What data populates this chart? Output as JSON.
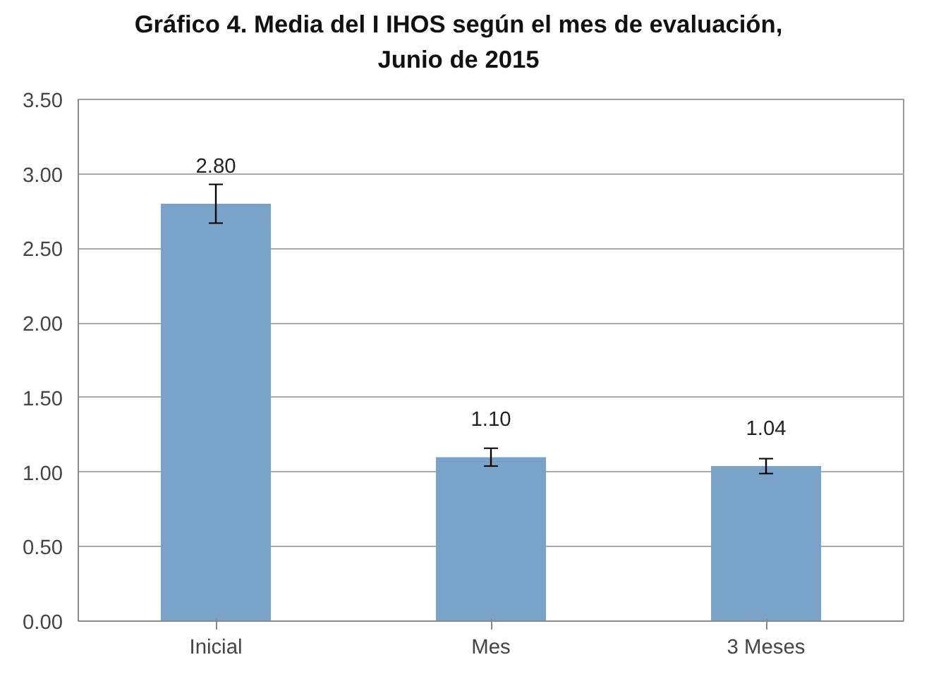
{
  "chart_data": {
    "type": "bar",
    "title": "Gráfico 4. Media del I IHOS según el mes de evaluación,\nJunio de 2015",
    "categories": [
      "Inicial",
      "Mes",
      "3 Meses"
    ],
    "values": [
      2.8,
      1.1,
      1.04
    ],
    "errors": [
      0.13,
      0.06,
      0.05
    ],
    "color": "#7aa3c9",
    "value_labels": [
      "2.80",
      "1.10",
      "1.04"
    ],
    "ylim": [
      0,
      3.5
    ],
    "yticks": [
      {
        "value": 0,
        "label": "0.00"
      },
      {
        "value": 0.5,
        "label": "0.50"
      },
      {
        "value": 1,
        "label": "1.00"
      },
      {
        "value": 1.5,
        "label": "1.50"
      },
      {
        "value": 2,
        "label": "2.00"
      },
      {
        "value": 2.5,
        "label": "2.50"
      },
      {
        "value": 3,
        "label": "3.00"
      },
      {
        "value": 3.5,
        "label": "3.50"
      }
    ],
    "grid": "y"
  }
}
